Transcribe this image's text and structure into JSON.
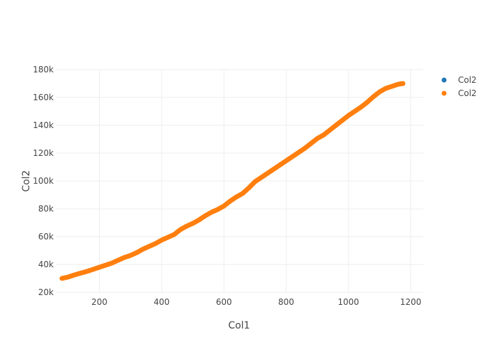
{
  "chart_data": {
    "type": "scatter",
    "xlabel": "Col1",
    "ylabel": "Col2",
    "xlim": [
      60,
      1240
    ],
    "ylim": [
      20000,
      180000
    ],
    "xticks": [
      200,
      400,
      600,
      800,
      1000,
      1200
    ],
    "yticks": [
      20000,
      40000,
      60000,
      80000,
      100000,
      120000,
      140000,
      160000,
      180000
    ],
    "xtick_labels": [
      "200",
      "400",
      "600",
      "800",
      "1000",
      "1200"
    ],
    "ytick_labels": [
      "20k",
      "40k",
      "60k",
      "80k",
      "100k",
      "120k",
      "140k",
      "160k",
      "180k"
    ],
    "grid": true,
    "legend_position": "top-right",
    "series": [
      {
        "name": "Col2",
        "color": "#1f77b4",
        "x": [],
        "y": []
      },
      {
        "name": "Col2",
        "color": "#ff7f0e",
        "x": [
          80,
          100,
          120,
          140,
          160,
          180,
          200,
          220,
          240,
          260,
          280,
          300,
          320,
          340,
          360,
          380,
          400,
          420,
          440,
          460,
          480,
          500,
          520,
          540,
          560,
          580,
          600,
          620,
          640,
          660,
          680,
          700,
          720,
          740,
          760,
          780,
          800,
          820,
          840,
          860,
          880,
          900,
          920,
          940,
          960,
          980,
          1000,
          1020,
          1040,
          1060,
          1080,
          1100,
          1120,
          1140,
          1160,
          1175
        ],
        "y": [
          30000,
          31000,
          32500,
          33800,
          35000,
          36500,
          38000,
          39500,
          41000,
          43000,
          45000,
          46500,
          48500,
          51000,
          53000,
          55000,
          57500,
          59500,
          61500,
          65000,
          67500,
          69500,
          72000,
          75000,
          77500,
          79500,
          82000,
          85500,
          88500,
          91000,
          95000,
          99500,
          102500,
          105500,
          108500,
          111500,
          114500,
          117500,
          120500,
          123500,
          127000,
          130500,
          133000,
          136500,
          140000,
          143500,
          147000,
          150000,
          153000,
          156500,
          160500,
          164000,
          166500,
          168000,
          169500,
          170000
        ]
      }
    ]
  }
}
